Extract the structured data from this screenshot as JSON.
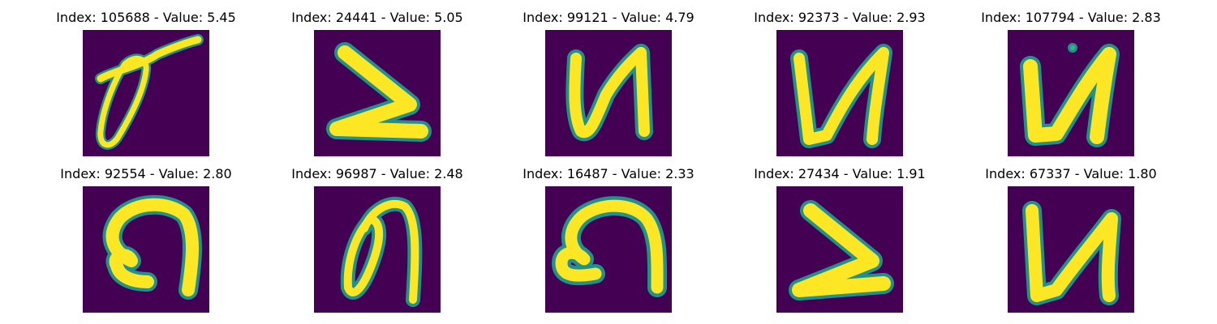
{
  "colors": {
    "background": "#440154",
    "stroke_core": "#fde725",
    "stroke_mid": "#35b779",
    "stroke_edge": "#21918c"
  },
  "panels": [
    {
      "title": "Index: 105688 - Value: 5.45",
      "glyph": "loop-slash"
    },
    {
      "title": "Index: 24441 - Value: 5.05",
      "glyph": "chevron"
    },
    {
      "title": "Index: 99121 - Value: 4.79",
      "glyph": "N-reverse"
    },
    {
      "title": "Index: 92373 - Value: 2.93",
      "glyph": "N-reverse"
    },
    {
      "title": "Index: 107794 - Value: 2.83",
      "glyph": "N-reverse-dot"
    },
    {
      "title": "Index: 92554 - Value: 2.80",
      "glyph": "arch-curl"
    },
    {
      "title": "Index: 96987 - Value: 2.48",
      "glyph": "loop-arch"
    },
    {
      "title": "Index: 16487 - Value: 2.33",
      "glyph": "arch-curl"
    },
    {
      "title": "Index: 27434 - Value: 1.91",
      "glyph": "chevron"
    },
    {
      "title": "Index: 67337 - Value: 1.80",
      "glyph": "N-reverse"
    }
  ]
}
